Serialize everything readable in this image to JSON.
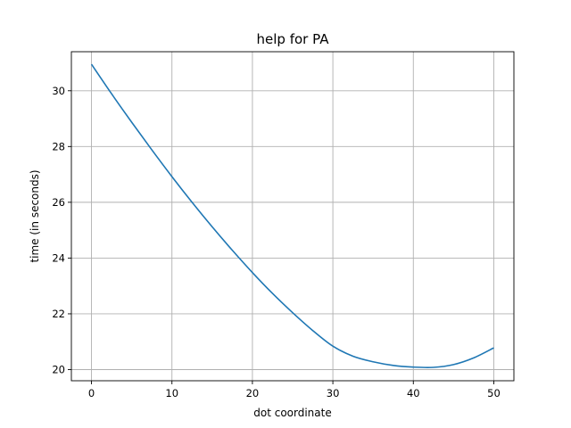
{
  "chart_data": {
    "type": "line",
    "title": "help for PA",
    "xlabel": "dot coordinate",
    "ylabel": "time (in seconds)",
    "xlim": [
      -2.5,
      52.5
    ],
    "ylim": [
      19.6,
      31.4
    ],
    "xticks": [
      0,
      10,
      20,
      30,
      40,
      50
    ],
    "yticks": [
      20,
      22,
      24,
      26,
      28,
      30
    ],
    "grid": true,
    "series": [
      {
        "color": "#1f77b4",
        "x": [
          0,
          2.5,
          5,
          7.5,
          10,
          12.5,
          15,
          17.5,
          20,
          22.5,
          25,
          27.5,
          30,
          32.5,
          35,
          37.5,
          40,
          42.5,
          45,
          47.5,
          50
        ],
        "y": [
          30.95,
          29.89,
          28.87,
          27.88,
          26.92,
          26.0,
          25.12,
          24.28,
          23.48,
          22.73,
          22.04,
          21.4,
          20.84,
          20.48,
          20.28,
          20.15,
          20.09,
          20.08,
          20.18,
          20.42,
          20.78
        ]
      }
    ]
  }
}
